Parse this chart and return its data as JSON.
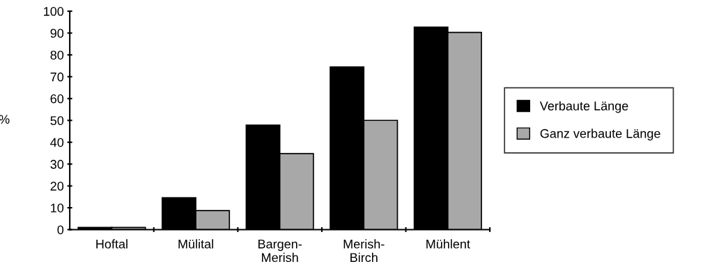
{
  "chart_data": {
    "type": "bar",
    "ylabel": "%",
    "categories": [
      "Hoftal",
      "Mülital",
      "Bargen-\nMerish",
      "Merish-\nBirch",
      "Mühlent"
    ],
    "series": [
      {
        "name": "Verbaute Länge",
        "color": "#000000",
        "values": [
          1,
          14.6,
          47.8,
          74.5,
          92.7
        ]
      },
      {
        "name": "Ganz verbaute Länge",
        "color": "#a8a8a8",
        "values": [
          1,
          8.7,
          34.8,
          50,
          90.3
        ]
      }
    ],
    "ylim": [
      0,
      100
    ],
    "yticks": [
      0,
      10,
      20,
      30,
      40,
      50,
      60,
      70,
      80,
      90,
      100
    ],
    "grid": false,
    "legend": "right"
  }
}
